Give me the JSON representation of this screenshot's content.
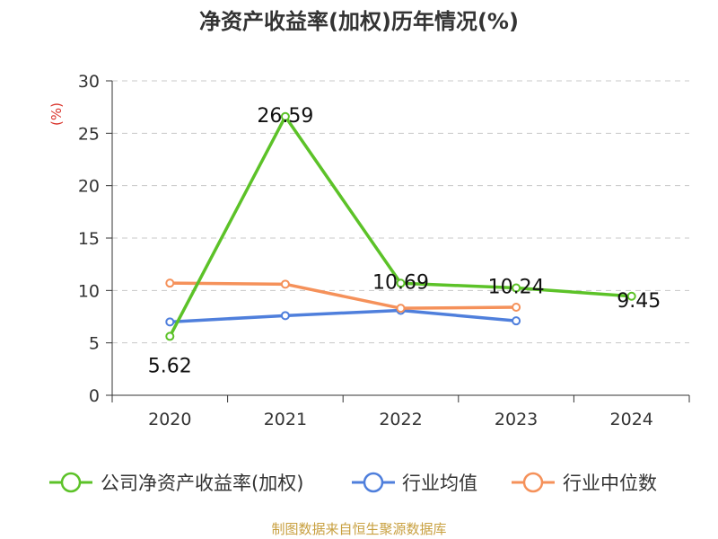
{
  "chart_data": {
    "type": "line",
    "title": "净资产收益率(加权)历年情况(%)",
    "ylabel": "(%)",
    "categories": [
      "2020",
      "2021",
      "2022",
      "2023",
      "2024"
    ],
    "ylim": [
      0,
      30
    ],
    "yticks": [
      0,
      5,
      10,
      15,
      20,
      25,
      30
    ],
    "grid": true,
    "legend_position": "bottom",
    "series": [
      {
        "name": "公司净资产收益率(加权)",
        "color": "#5cc228",
        "values": [
          5.62,
          26.59,
          10.69,
          10.24,
          9.45
        ],
        "labels": [
          "5.62",
          "26.59",
          "10.69",
          "10.24",
          "9.45"
        ]
      },
      {
        "name": "行业均值",
        "color": "#4f7fdc",
        "values": [
          7.0,
          7.6,
          8.1,
          7.1,
          null
        ]
      },
      {
        "name": "行业中位数",
        "color": "#f5915a",
        "values": [
          10.7,
          10.6,
          8.3,
          8.4,
          null
        ]
      }
    ]
  },
  "source": "制图数据来自恒生聚源数据库"
}
